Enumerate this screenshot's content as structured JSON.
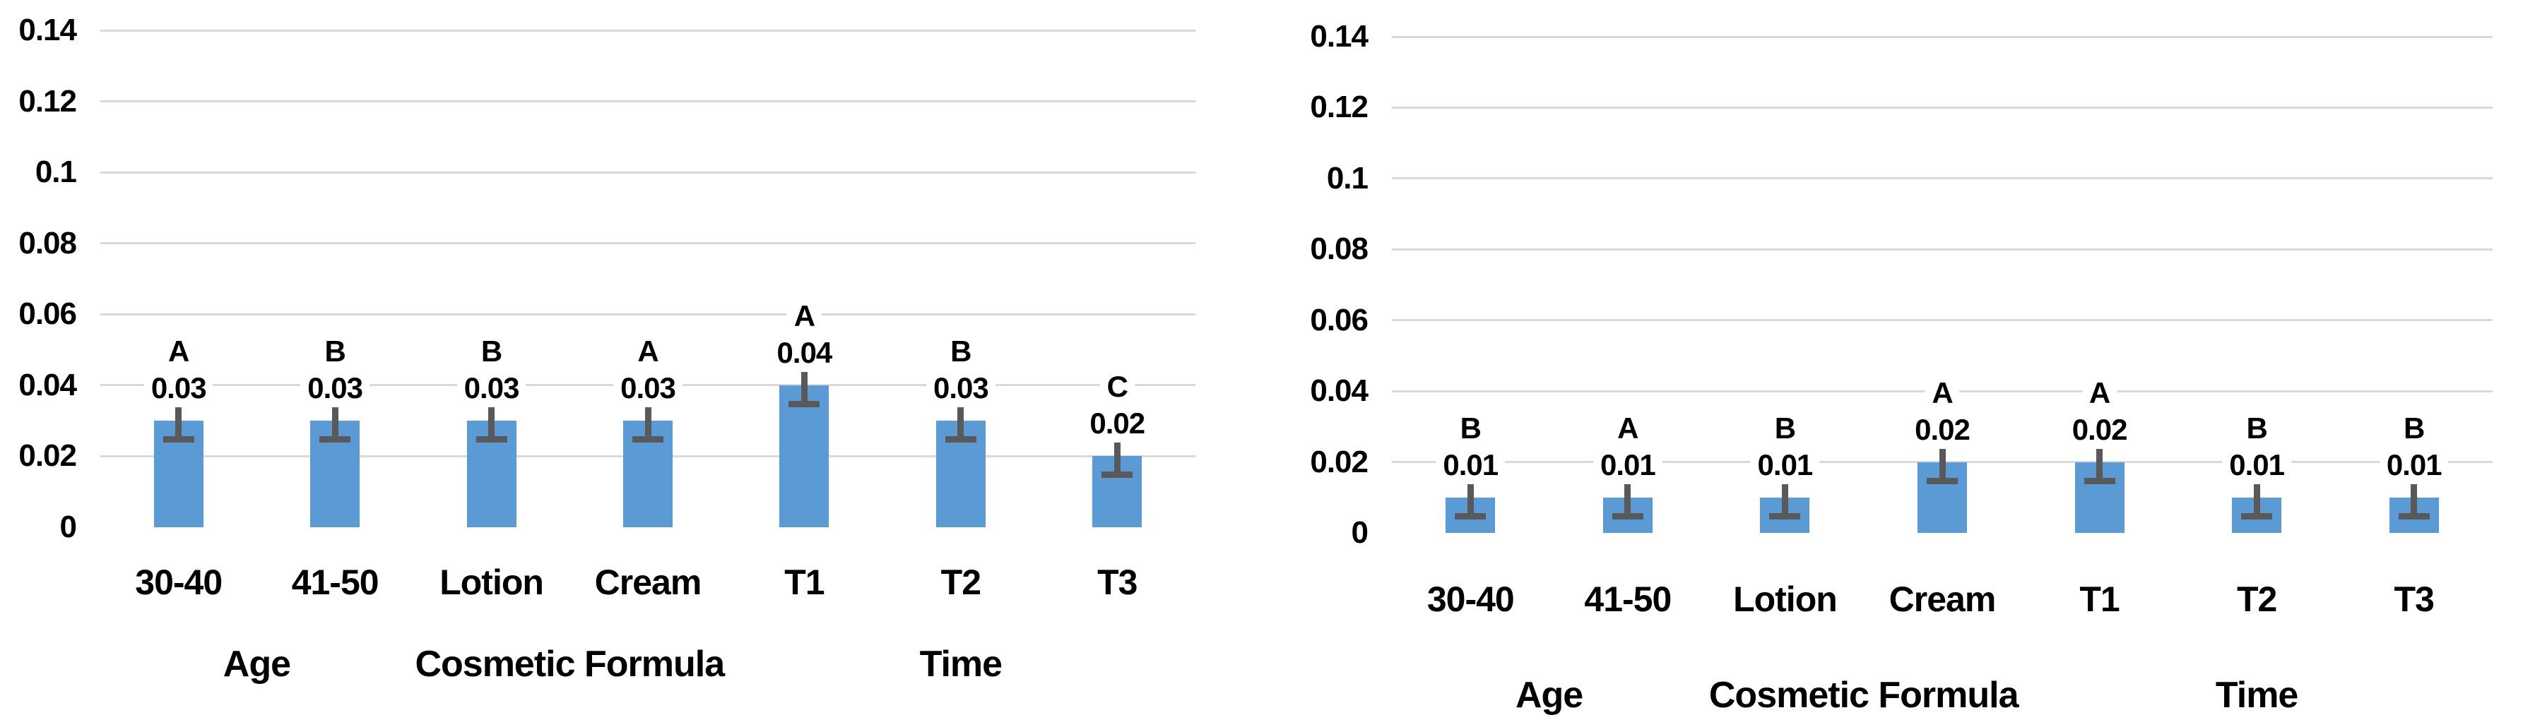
{
  "colors": {
    "bar": "#5B9BD5",
    "error_bar": "#595959",
    "gridline": "#D9D9D9",
    "text": "#000000",
    "background": "#FFFFFF"
  },
  "chart_data": [
    {
      "type": "bar",
      "position": "left",
      "title": "",
      "xlabel": "",
      "ylabel": "",
      "categories": [
        "30-40",
        "41-50",
        "Lotion",
        "Cream",
        "T1",
        "T2",
        "T3"
      ],
      "values": [
        0.03,
        0.03,
        0.03,
        0.03,
        0.04,
        0.03,
        0.02
      ],
      "value_labels": [
        "0.03",
        "0.03",
        "0.03",
        "0.03",
        "0.04",
        "0.03",
        "0.02"
      ],
      "significance_letters": [
        "A",
        "B",
        "B",
        "A",
        "A",
        "B",
        "C"
      ],
      "error_bar_value": 0.004,
      "group_labels": [
        {
          "label": "Age",
          "from": 0,
          "to": 1
        },
        {
          "label": "Cosmetic Formula",
          "from": 2,
          "to": 3
        },
        {
          "label": "Time",
          "from": 4,
          "to": 6
        }
      ],
      "ylim": [
        0,
        0.14
      ],
      "ytick_labels": [
        "0",
        "0.02",
        "0.04",
        "0.06",
        "0.08",
        "0.1",
        "0.12",
        "0.14"
      ],
      "grid": true,
      "legend": false
    },
    {
      "type": "bar",
      "position": "right",
      "title": "",
      "xlabel": "",
      "ylabel": "",
      "categories": [
        "30-40",
        "41-50",
        "Lotion",
        "Cream",
        "T1",
        "T2",
        "T3"
      ],
      "values": [
        0.01,
        0.01,
        0.01,
        0.02,
        0.02,
        0.01,
        0.01
      ],
      "value_labels": [
        "0.01",
        "0.01",
        "0.01",
        "0.02",
        "0.02",
        "0.01",
        "0.01"
      ],
      "significance_letters": [
        "B",
        "A",
        "B",
        "A",
        "A",
        "B",
        "B"
      ],
      "error_bar_value": 0.004,
      "group_labels": [
        {
          "label": "Age",
          "from": 0,
          "to": 1
        },
        {
          "label": "Cosmetic Formula",
          "from": 2,
          "to": 3
        },
        {
          "label": "Time",
          "from": 4,
          "to": 6
        }
      ],
      "ylim": [
        0,
        0.14
      ],
      "ytick_labels": [
        "0",
        "0.02",
        "0.04",
        "0.06",
        "0.08",
        "0.1",
        "0.12",
        "0.14"
      ],
      "grid": true,
      "legend": false
    }
  ]
}
